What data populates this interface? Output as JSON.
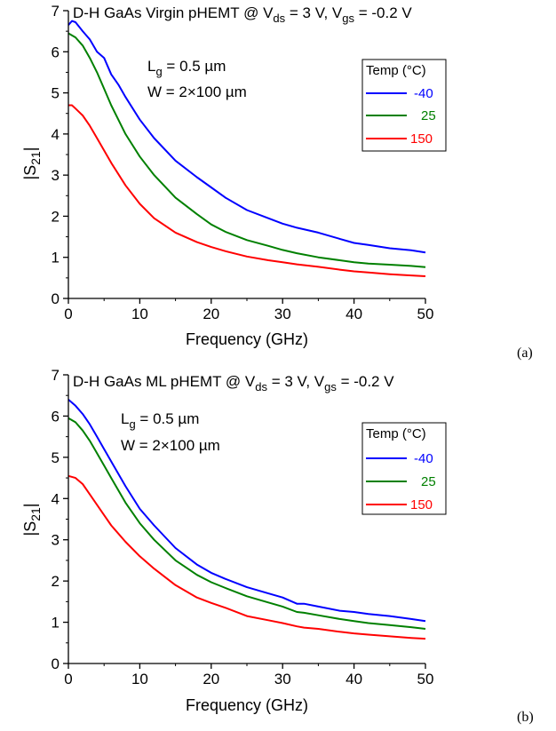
{
  "chart_data": [
    {
      "type": "line",
      "title": "D-H GaAs Virgin pHEMT @ V_ds = 3 V, V_gs = -0.2 V",
      "title_parts": {
        "prefix": "D-H GaAs Virgin pHEMT @ V",
        "sub1": "ds",
        "mid": " = 3 V, V",
        "sub2": "gs",
        "suffix": " = -0.2 V"
      },
      "xlabel": "Frequency (GHz)",
      "ylabel": {
        "base": "|S",
        "sub": "21",
        "end": "|"
      },
      "xlim": [
        0,
        50
      ],
      "ylim": [
        0,
        7
      ],
      "xticks": [
        "0",
        "10",
        "20",
        "30",
        "40",
        "50"
      ],
      "yticks": [
        "0",
        "1",
        "2",
        "3",
        "4",
        "5",
        "6",
        "7"
      ],
      "grid": false,
      "annotations": {
        "lg": {
          "base": "L",
          "sub": "g",
          "rest": " = 0.5 µm"
        },
        "w": "W = 2×100 µm"
      },
      "legend": {
        "title": "Temp (°C)",
        "placement": "top-right"
      },
      "panel_label": "(a)",
      "series": [
        {
          "name": "-40",
          "color": "#0000ff",
          "x": [
            0,
            0.5,
            1,
            2,
            3,
            4,
            5,
            6,
            7,
            8,
            10,
            12,
            15,
            18,
            20,
            22,
            25,
            28,
            30,
            32,
            35,
            38,
            40,
            42,
            45,
            48,
            50
          ],
          "y": [
            6.65,
            6.75,
            6.72,
            6.5,
            6.3,
            6.0,
            5.85,
            5.45,
            5.2,
            4.9,
            4.35,
            3.9,
            3.35,
            2.95,
            2.7,
            2.45,
            2.15,
            1.95,
            1.82,
            1.72,
            1.6,
            1.45,
            1.35,
            1.3,
            1.22,
            1.17,
            1.12
          ]
        },
        {
          "name": "25",
          "color": "#008000",
          "x": [
            0,
            1,
            2,
            3,
            4,
            5,
            6,
            8,
            10,
            12,
            15,
            18,
            20,
            22,
            25,
            28,
            30,
            32,
            35,
            38,
            40,
            42,
            45,
            48,
            50
          ],
          "y": [
            6.45,
            6.35,
            6.15,
            5.85,
            5.5,
            5.1,
            4.7,
            4.0,
            3.45,
            3.0,
            2.45,
            2.05,
            1.8,
            1.62,
            1.42,
            1.28,
            1.18,
            1.1,
            1.0,
            0.93,
            0.88,
            0.85,
            0.82,
            0.79,
            0.76
          ]
        },
        {
          "name": "150",
          "color": "#ff0000",
          "x": [
            0,
            0.5,
            1,
            2,
            3,
            4,
            5,
            6,
            8,
            10,
            12,
            15,
            18,
            20,
            22,
            25,
            28,
            30,
            32,
            35,
            38,
            40,
            42,
            45,
            48,
            50
          ],
          "y": [
            4.7,
            4.7,
            4.62,
            4.45,
            4.2,
            3.9,
            3.6,
            3.3,
            2.75,
            2.3,
            1.95,
            1.6,
            1.37,
            1.25,
            1.15,
            1.02,
            0.93,
            0.88,
            0.83,
            0.77,
            0.7,
            0.66,
            0.63,
            0.59,
            0.56,
            0.54
          ]
        }
      ]
    },
    {
      "type": "line",
      "title": "D-H GaAs ML pHEMT @ V_ds = 3 V, V_gs = -0.2 V",
      "title_parts": {
        "prefix": "D-H GaAs ML pHEMT @ V",
        "sub1": "ds",
        "mid": " = 3 V, V",
        "sub2": "gs",
        "suffix": " = -0.2 V"
      },
      "xlabel": "Frequency (GHz)",
      "ylabel": {
        "base": "|S",
        "sub": "21",
        "end": "|"
      },
      "xlim": [
        0,
        50
      ],
      "ylim": [
        0,
        7
      ],
      "xticks": [
        "0",
        "10",
        "20",
        "30",
        "40",
        "50"
      ],
      "yticks": [
        "0",
        "1",
        "2",
        "3",
        "4",
        "5",
        "6",
        "7"
      ],
      "grid": false,
      "annotations": {
        "lg": {
          "base": "L",
          "sub": "g",
          "rest": " = 0.5 µm"
        },
        "w": "W = 2×100 µm"
      },
      "legend": {
        "title": "Temp (°C)",
        "placement": "top-right"
      },
      "panel_label": "(b)",
      "series": [
        {
          "name": "-40",
          "color": "#0000ff",
          "x": [
            0,
            1,
            2,
            3,
            4,
            5,
            6,
            8,
            10,
            12,
            15,
            18,
            20,
            22,
            25,
            28,
            30,
            32,
            33,
            35,
            38,
            40,
            42,
            45,
            48,
            50
          ],
          "y": [
            6.4,
            6.25,
            6.05,
            5.8,
            5.5,
            5.2,
            4.9,
            4.3,
            3.75,
            3.35,
            2.8,
            2.4,
            2.2,
            2.05,
            1.85,
            1.7,
            1.6,
            1.45,
            1.45,
            1.38,
            1.28,
            1.25,
            1.2,
            1.15,
            1.08,
            1.03
          ]
        },
        {
          "name": "25",
          "color": "#008000",
          "x": [
            0,
            1,
            2,
            3,
            4,
            5,
            6,
            8,
            10,
            12,
            15,
            18,
            20,
            22,
            25,
            28,
            30,
            32,
            33,
            35,
            38,
            40,
            42,
            45,
            48,
            50
          ],
          "y": [
            5.95,
            5.85,
            5.65,
            5.4,
            5.1,
            4.8,
            4.5,
            3.9,
            3.4,
            3.0,
            2.5,
            2.15,
            1.97,
            1.83,
            1.63,
            1.48,
            1.38,
            1.25,
            1.23,
            1.17,
            1.08,
            1.03,
            0.98,
            0.93,
            0.88,
            0.84
          ]
        },
        {
          "name": "150",
          "color": "#ff0000",
          "x": [
            0,
            1,
            2,
            3,
            4,
            5,
            6,
            8,
            10,
            12,
            15,
            18,
            20,
            22,
            25,
            28,
            30,
            32,
            33,
            35,
            38,
            40,
            42,
            45,
            48,
            50
          ],
          "y": [
            4.55,
            4.5,
            4.35,
            4.1,
            3.85,
            3.6,
            3.35,
            2.95,
            2.6,
            2.3,
            1.9,
            1.6,
            1.47,
            1.35,
            1.15,
            1.05,
            0.98,
            0.9,
            0.87,
            0.84,
            0.77,
            0.73,
            0.7,
            0.66,
            0.62,
            0.6
          ]
        }
      ]
    }
  ]
}
